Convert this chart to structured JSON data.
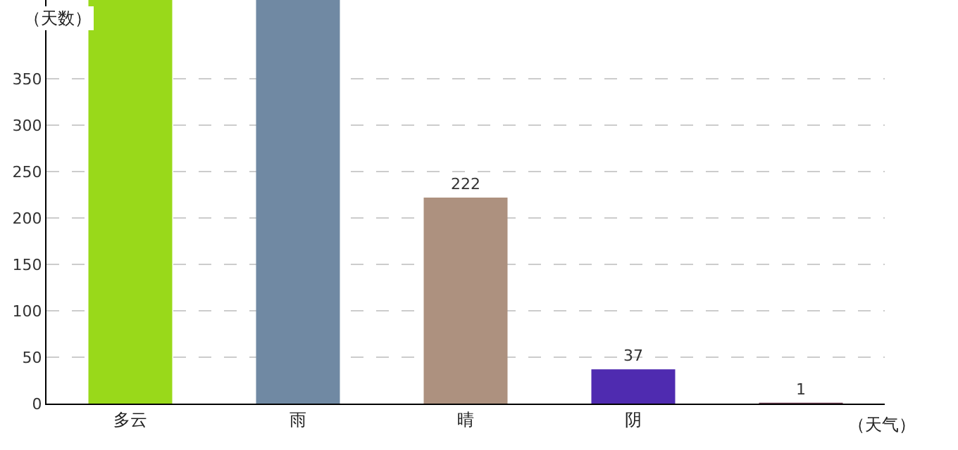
{
  "chart_data": {
    "type": "bar",
    "ylabel": "（天数）",
    "xlabel": "（天气）",
    "categories": [
      "多云",
      "雨",
      "晴",
      "阴",
      null
    ],
    "values": [
      435,
      435,
      222,
      37,
      1
    ],
    "colors": [
      "#99d91a",
      "#7089a3",
      "#ad917f",
      "#4f2bb0",
      "#6b3b4f"
    ],
    "value_labels": [
      null,
      null,
      "222",
      "37",
      "1"
    ],
    "ylim": [
      0,
      435
    ],
    "yticks": [
      0,
      50,
      100,
      150,
      200,
      250,
      300,
      350
    ],
    "grid": "y"
  }
}
